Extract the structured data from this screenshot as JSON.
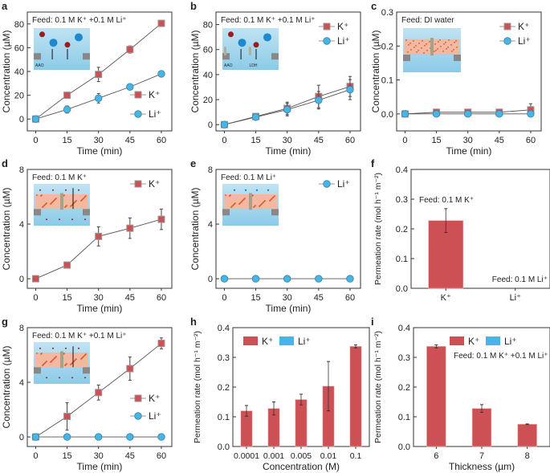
{
  "colors": {
    "K": "#cd5055",
    "Li": "#45b6e6",
    "line": "#555555"
  },
  "icons": {
    "K": "red-square-marker",
    "Li": "blue-circle-marker"
  },
  "chart_data": [
    {
      "panel": "a",
      "type": "line",
      "xlabel": "Time (min)",
      "ylabel": "Concentration (µM)",
      "xlim": [
        -4,
        65
      ],
      "ylim": [
        -10,
        90
      ],
      "xticks": [
        0,
        15,
        30,
        45,
        60
      ],
      "yticks": [
        0,
        20,
        40,
        60,
        80
      ],
      "x": [
        0,
        15,
        30,
        45,
        60
      ],
      "annotation": "Feed: 0.1 M K⁺ +0.1 M Li⁺",
      "inset_labels": [
        "AAO"
      ],
      "legend_position": "bottom-right",
      "series": [
        {
          "name": "K⁺",
          "values": [
            0,
            20,
            37.5,
            58.5,
            80.5
          ],
          "errors": [
            1,
            2.5,
            6,
            3,
            1.5
          ]
        },
        {
          "name": "Li⁺",
          "values": [
            0,
            8,
            17.5,
            27,
            38
          ],
          "errors": [
            1,
            3,
            4,
            1,
            1
          ]
        }
      ]
    },
    {
      "panel": "b",
      "type": "line",
      "xlabel": "Time (min)",
      "ylabel": "Concentration (µM)",
      "xlim": [
        -4,
        65
      ],
      "ylim": [
        -5,
        90
      ],
      "xticks": [
        0,
        15,
        30,
        45,
        60
      ],
      "yticks": [
        0,
        20,
        40,
        60,
        80
      ],
      "x": [
        0,
        15,
        30,
        45,
        60
      ],
      "annotation": "Feed: 0.1 M K⁺ +0.1 M Li⁺",
      "inset_labels": [
        "AAO",
        "LDH"
      ],
      "legend_position": "top-right",
      "series": [
        {
          "name": "K⁺",
          "values": [
            0,
            6.5,
            13,
            22.5,
            30.5
          ],
          "errors": [
            1,
            2,
            5,
            9,
            8
          ]
        },
        {
          "name": "Li⁺",
          "values": [
            0,
            6,
            12,
            19.5,
            28
          ],
          "errors": [
            1,
            2,
            5,
            7,
            8
          ]
        }
      ]
    },
    {
      "panel": "c",
      "type": "line",
      "xlabel": "Time (min)",
      "ylabel": "Concentration (µM)",
      "xlim": [
        -4,
        65
      ],
      "ylim": [
        -0.05,
        0.3
      ],
      "xticks": [
        0,
        15,
        30,
        45,
        60
      ],
      "yticks": [
        "0.0",
        "0.1",
        "0.2",
        "0.3"
      ],
      "x": [
        0,
        15,
        30,
        45,
        60
      ],
      "annotation": "Feed: DI water",
      "inset_labels": [],
      "legend_position": "top-right",
      "series": [
        {
          "name": "K⁺",
          "values": [
            0,
            0.005,
            0.005,
            0.005,
            0.012
          ],
          "errors": [
            0,
            0.004,
            0.004,
            0.004,
            0.018
          ]
        },
        {
          "name": "Li⁺",
          "values": [
            0,
            0,
            0,
            0,
            0
          ],
          "errors": [
            0,
            0,
            0,
            0,
            0
          ]
        }
      ]
    },
    {
      "panel": "d",
      "type": "line",
      "xlabel": "Time (min)",
      "ylabel": "Concentration (µM)",
      "xlim": [
        -4,
        65
      ],
      "ylim": [
        -0.7,
        8
      ],
      "xticks": [
        0,
        15,
        30,
        45,
        60
      ],
      "yticks": [
        0,
        4,
        8
      ],
      "x": [
        0,
        15,
        30,
        45,
        60
      ],
      "annotation": "Feed: 0.1 M K⁺",
      "inset_labels": [],
      "legend_position": "top-right",
      "series": [
        {
          "name": "K⁺",
          "values": [
            0,
            1.0,
            3.1,
            3.7,
            4.35
          ],
          "errors": [
            0.05,
            0.15,
            0.7,
            0.75,
            0.75
          ]
        }
      ]
    },
    {
      "panel": "e",
      "type": "line",
      "xlabel": "Time (min)",
      "ylabel": "Concentration (µM)",
      "xlim": [
        -4,
        65
      ],
      "ylim": [
        -0.7,
        8
      ],
      "xticks": [
        0,
        15,
        30,
        45,
        60
      ],
      "yticks": [
        0,
        4,
        8
      ],
      "x": [
        0,
        15,
        30,
        45,
        60
      ],
      "annotation": "Feed: 0.1 M Li⁺",
      "inset_labels": [],
      "legend_position": "top-right",
      "series": [
        {
          "name": "Li⁺",
          "values": [
            0,
            0,
            0,
            0,
            0
          ],
          "errors": [
            0,
            0,
            0,
            0,
            0
          ]
        }
      ]
    },
    {
      "panel": "f",
      "type": "bar",
      "xlabel": "",
      "ylabel": "Permeation rate (mol h⁻¹ m⁻²)",
      "ylim": [
        0,
        0.4
      ],
      "yticks": [
        "0.0",
        "0.1",
        "0.2",
        "0.3",
        "0.4"
      ],
      "categories": [
        "K⁺",
        "Li⁺"
      ],
      "annotations": [
        "Feed: 0.1 M K⁺",
        "Feed: 0.1 M Li⁺"
      ],
      "series": [
        {
          "values": [
            0.228,
            0
          ],
          "errors": [
            0.04,
            0
          ]
        }
      ]
    },
    {
      "panel": "g",
      "type": "line",
      "xlabel": "Time (min)",
      "ylabel": "Concentration (µM)",
      "xlim": [
        -4,
        65
      ],
      "ylim": [
        -0.7,
        8
      ],
      "xticks": [
        0,
        15,
        30,
        45,
        60
      ],
      "yticks": [
        0,
        4,
        8
      ],
      "x": [
        0,
        15,
        30,
        45,
        60
      ],
      "annotation": "Feed: 0.1 M K⁺ +0.1 M Li⁺",
      "inset_labels": [],
      "legend_position": "center-right",
      "series": [
        {
          "name": "K⁺",
          "values": [
            0,
            1.5,
            3.25,
            5.0,
            6.85
          ],
          "errors": [
            0.05,
            1.0,
            0.55,
            0.85,
            0.4
          ]
        },
        {
          "name": "Li⁺",
          "values": [
            0,
            0,
            0,
            0,
            0
          ],
          "errors": [
            0,
            0,
            0,
            0,
            0
          ]
        }
      ]
    },
    {
      "panel": "h",
      "type": "bar",
      "xlabel": "Concentration (M)",
      "ylabel": "Permeation rate (mol h⁻¹ m⁻²)",
      "ylim": [
        0,
        0.4
      ],
      "yticks": [
        "0.0",
        "0.1",
        "0.2",
        "0.3",
        "0.4"
      ],
      "categories": [
        "0.0001",
        "0.001",
        "0.005",
        "0.01",
        "0.1"
      ],
      "legend_position": "top-left",
      "series": [
        {
          "name": "K⁺",
          "values": [
            0.12,
            0.128,
            0.158,
            0.203,
            0.337
          ],
          "errors": [
            0.018,
            0.022,
            0.018,
            0.083,
            0.005
          ]
        },
        {
          "name": "Li⁺",
          "values": [
            0,
            0,
            0,
            0,
            0
          ],
          "errors": [
            0,
            0,
            0,
            0,
            0
          ]
        }
      ]
    },
    {
      "panel": "i",
      "type": "bar",
      "xlabel": "Thickness (µm)",
      "ylabel": "Permeation rate (mol h⁻¹ m⁻²)",
      "ylim": [
        0,
        0.4
      ],
      "yticks": [
        "0.0",
        "0.1",
        "0.2",
        "0.3",
        "0.4"
      ],
      "categories": [
        "6",
        "7",
        "8"
      ],
      "annotation": "Feed: 0.1 M K⁺ +0.1 M Li⁺",
      "legend_position": "top-right",
      "series": [
        {
          "name": "K⁺",
          "values": [
            0.337,
            0.128,
            0.075
          ],
          "errors": [
            0.005,
            0.013,
            0.001
          ]
        },
        {
          "name": "Li⁺",
          "values": [
            0,
            0,
            0
          ],
          "errors": [
            0,
            0,
            0
          ]
        }
      ]
    }
  ]
}
